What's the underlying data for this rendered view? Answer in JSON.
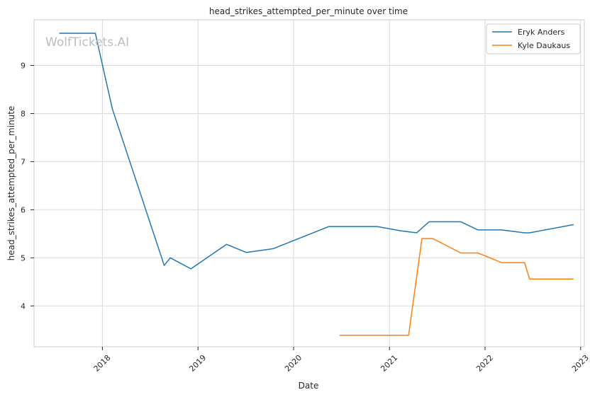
{
  "chart_data": {
    "type": "line",
    "title": "head_strikes_attempted_per_minute over time",
    "xlabel": "Date",
    "ylabel": "head_strikes_attempted_per_minute",
    "watermark": "WolfTickets.AI",
    "grid": true,
    "legend_position": "top-right",
    "xlim": [
      "2017-04-15",
      "2023-01-15"
    ],
    "ylim": [
      3.15,
      9.95
    ],
    "x_ticks": [
      "2018-01-01",
      "2019-01-01",
      "2020-01-01",
      "2021-01-01",
      "2022-01-01",
      "2023-01-01"
    ],
    "x_tick_labels": [
      "2018",
      "2019",
      "2020",
      "2021",
      "2022",
      "2023"
    ],
    "y_ticks": [
      4,
      5,
      6,
      7,
      8,
      9
    ],
    "y_tick_labels": [
      "4",
      "5",
      "6",
      "7",
      "8",
      "9"
    ],
    "series": [
      {
        "name": "Eryk Anders",
        "color": "#1f77b4",
        "x": [
          "2017-07-20",
          "2017-12-05",
          "2018-02-08",
          "2018-08-25",
          "2018-09-17",
          "2018-12-05",
          "2019-04-20",
          "2019-07-05",
          "2019-10-15",
          "2020-05-15",
          "2020-11-15",
          "2021-02-15",
          "2021-04-15",
          "2021-06-01",
          "2021-10-01",
          "2021-12-05",
          "2022-03-05",
          "2022-06-01",
          "2022-06-20",
          "2022-12-05"
        ],
        "y": [
          9.67,
          9.67,
          8.1,
          4.84,
          5.0,
          4.77,
          5.28,
          5.11,
          5.19,
          5.65,
          5.65,
          5.56,
          5.52,
          5.75,
          5.75,
          5.58,
          5.58,
          5.52,
          5.52,
          5.69
        ]
      },
      {
        "name": "Kyle Daukaus",
        "color": "#ff7f0e",
        "x": [
          "2020-06-25",
          "2021-03-15",
          "2021-05-05",
          "2021-06-15",
          "2021-10-01",
          "2021-12-05",
          "2022-03-05",
          "2022-06-01",
          "2022-06-20",
          "2022-12-05"
        ],
        "y": [
          3.39,
          3.39,
          5.4,
          5.4,
          5.1,
          5.1,
          4.9,
          4.9,
          4.56,
          4.56
        ]
      }
    ]
  }
}
